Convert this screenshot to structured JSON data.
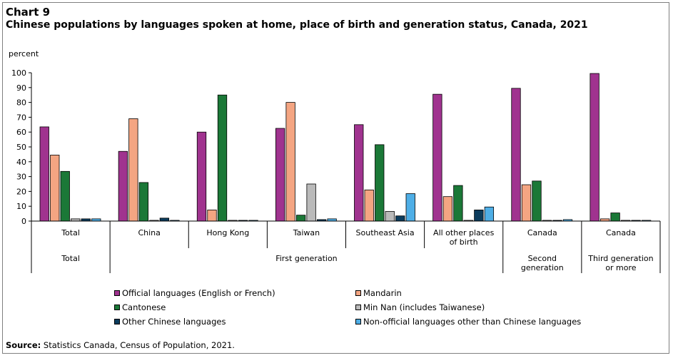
{
  "chart_label": "Chart 9",
  "title": "Chinese populations by languages spoken at home, place of birth and generation status, Canada, 2021",
  "source_label": "Source:",
  "source_text": "Statistics Canada, Census of Population, 2021.",
  "chart_data": {
    "type": "bar",
    "title": "Chinese populations by languages spoken at home, place of birth and generation status, Canada, 2021",
    "ylabel": "percent",
    "xlabel": "",
    "ylim": [
      0,
      100
    ],
    "yticks": [
      0,
      10,
      20,
      30,
      40,
      50,
      60,
      70,
      80,
      90,
      100
    ],
    "grid": false,
    "legend_position": "bottom",
    "categories": [
      "Total",
      "China",
      "Hong Kong",
      "Taiwan",
      "Southeast Asia",
      "All other places of birth",
      "Canada",
      "Canada"
    ],
    "category_label_lines": [
      [
        "Total"
      ],
      [
        "China"
      ],
      [
        "Hong Kong"
      ],
      [
        "Taiwan"
      ],
      [
        "Southeast Asia"
      ],
      [
        "All other places",
        "of birth"
      ],
      [
        "Canada"
      ],
      [
        "Canada"
      ]
    ],
    "groups": [
      {
        "label_lines": [
          "Total"
        ],
        "span": [
          0,
          0
        ]
      },
      {
        "label_lines": [
          "First generation"
        ],
        "span": [
          1,
          5
        ]
      },
      {
        "label_lines": [
          "Second",
          "generation"
        ],
        "span": [
          6,
          6
        ]
      },
      {
        "label_lines": [
          "Third generation",
          "or more"
        ],
        "span": [
          7,
          7
        ]
      }
    ],
    "series": [
      {
        "name": "Official languages (English or French)",
        "color": "#a0338f",
        "values": [
          63.5,
          47,
          60,
          62.5,
          65,
          85.5,
          89.5,
          99.5
        ]
      },
      {
        "name": "Mandarin",
        "color": "#f4a582",
        "values": [
          44.5,
          69,
          7.5,
          80,
          21,
          16.5,
          24.5,
          1.5
        ]
      },
      {
        "name": "Cantonese",
        "color": "#1b7837",
        "values": [
          33.5,
          26,
          85,
          4,
          51.5,
          24,
          27,
          5.5
        ]
      },
      {
        "name": "Min Nan (includes Taiwanese)",
        "color": "#bababa",
        "values": [
          1.5,
          0.5,
          0.5,
          25,
          6.5,
          0.5,
          0.5,
          0.5
        ]
      },
      {
        "name": "Other Chinese languages",
        "color": "#0b3c5d",
        "values": [
          1.5,
          2,
          0.5,
          1,
          3.5,
          7.5,
          0.5,
          0.5
        ]
      },
      {
        "name": "Non-official languages other than Chinese languages",
        "color": "#4eaee6",
        "values": [
          1.5,
          0.5,
          0.5,
          1.5,
          18.5,
          9.5,
          1,
          0.5
        ]
      }
    ]
  }
}
